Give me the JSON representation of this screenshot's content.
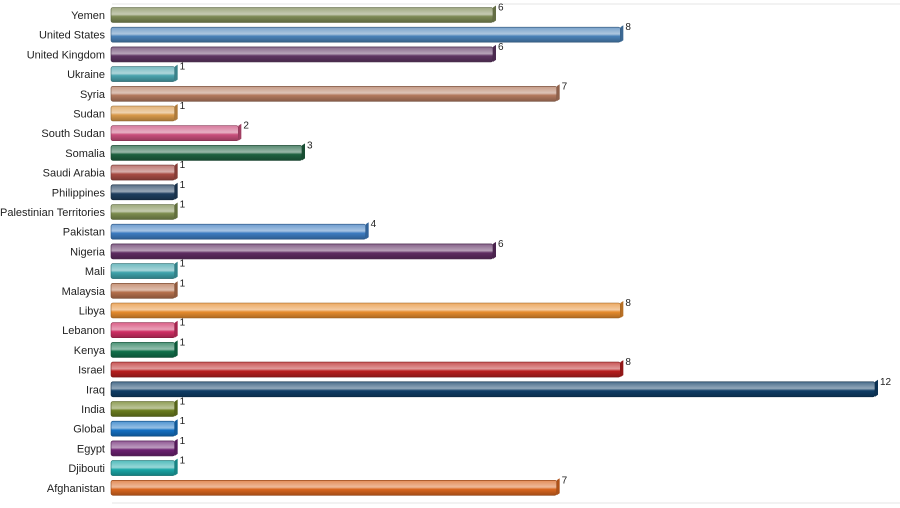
{
  "chart_data": {
    "type": "bar",
    "orientation": "horizontal",
    "categories": [
      "Yemen",
      "United States",
      "United Kingdom",
      "Ukraine",
      "Syria",
      "Sudan",
      "South Sudan",
      "Somalia",
      "Saudi Arabia",
      "Philippines",
      "Palestinian Territories",
      "Pakistan",
      "Nigeria",
      "Mali",
      "Malaysia",
      "Libya",
      "Lebanon",
      "Kenya",
      "Israel",
      "Iraq",
      "India",
      "Global",
      "Egypt",
      "Djibouti",
      "Afghanistan"
    ],
    "values": [
      6,
      8,
      6,
      1,
      7,
      1,
      2,
      3,
      1,
      1,
      1,
      4,
      6,
      1,
      1,
      8,
      1,
      1,
      8,
      12,
      1,
      1,
      1,
      1,
      7
    ],
    "colors": [
      "#7d8a55",
      "#4a82b8",
      "#5e3563",
      "#4aa3ad",
      "#b3795e",
      "#d99a4a",
      "#c94f7c",
      "#1e6140",
      "#a84c45",
      "#1f3e5e",
      "#7c8c4e",
      "#3d7cc0",
      "#5e2d61",
      "#3fa3ab",
      "#b5704c",
      "#e68c2e",
      "#cf2e63",
      "#11704a",
      "#b81e1e",
      "#0f3d66",
      "#6b7d1f",
      "#1470c2",
      "#6b2070",
      "#1aa6a6",
      "#d9661f"
    ],
    "title": "",
    "xlabel": "",
    "ylabel": "",
    "xlim": [
      0,
      12
    ],
    "grid": false,
    "legend": "none"
  }
}
